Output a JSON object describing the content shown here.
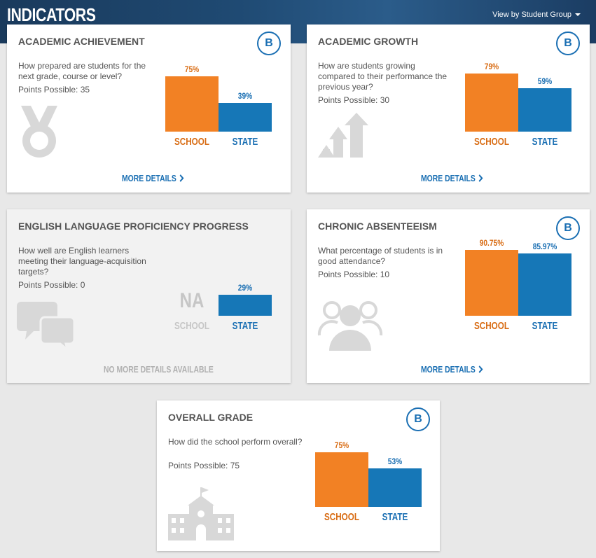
{
  "page": {
    "title": "INDICATORS",
    "view_by_label": "View by Student Group"
  },
  "colors": {
    "school": "#f28124",
    "state": "#1677b7",
    "header": "#1f4a73",
    "grade_badge": "#1a6fb3"
  },
  "cards": {
    "academic_achievement": {
      "title": "ACADEMIC ACHIEVEMENT",
      "description": "How prepared are students for the next grade, course or level?",
      "points": "Points Possible: 35",
      "grade": "B",
      "icon": "medal-icon",
      "school_value": "75%",
      "state_value": "39%",
      "school_label": "SCHOOL",
      "state_label": "STATE",
      "link": "MORE DETAILS"
    },
    "academic_growth": {
      "title": "ACADEMIC GROWTH",
      "description": "How are students growing compared to their performance the previous year?",
      "points": "Points Possible: 30",
      "grade": "B",
      "icon": "growth-arrows-icon",
      "school_value": "79%",
      "state_value": "59%",
      "school_label": "SCHOOL",
      "state_label": "STATE",
      "link": "MORE DETAILS"
    },
    "english_proficiency": {
      "title": "ENGLISH LANGUAGE PROFICIENCY PROGRESS",
      "description": "How well are English learners meeting their language-acquisition targets?",
      "points": "Points Possible: 0",
      "icon": "speech-bubbles-icon",
      "school_value": "NA",
      "state_value": "29%",
      "school_label": "SCHOOL",
      "state_label": "STATE",
      "link": "NO MORE DETAILS AVAILABLE"
    },
    "chronic_absenteeism": {
      "title": "CHRONIC ABSENTEEISM",
      "description": "What percentage of students is in good attendance?",
      "points": "Points Possible: 10",
      "grade": "B",
      "icon": "people-group-icon",
      "school_value": "90.75%",
      "state_value": "85.97%",
      "school_label": "SCHOOL",
      "state_label": "STATE",
      "link": "MORE DETAILS"
    },
    "overall_grade": {
      "title": "OVERALL GRADE",
      "description": "How did the school perform overall?",
      "points": "Points Possible: 75",
      "grade": "B",
      "icon": "school-building-icon",
      "school_value": "75%",
      "state_value": "53%",
      "school_label": "SCHOOL",
      "state_label": "STATE"
    }
  },
  "chart_data": [
    {
      "type": "bar",
      "categories": [
        "SCHOOL",
        "STATE"
      ],
      "values": [
        75,
        39
      ],
      "title": "ACADEMIC ACHIEVEMENT",
      "ylim": [
        0,
        100
      ]
    },
    {
      "type": "bar",
      "categories": [
        "SCHOOL",
        "STATE"
      ],
      "values": [
        79,
        59
      ],
      "title": "ACADEMIC GROWTH",
      "ylim": [
        0,
        100
      ]
    },
    {
      "type": "bar",
      "categories": [
        "SCHOOL",
        "STATE"
      ],
      "values": [
        null,
        29
      ],
      "title": "ENGLISH LANGUAGE PROFICIENCY PROGRESS",
      "ylim": [
        0,
        100
      ]
    },
    {
      "type": "bar",
      "categories": [
        "SCHOOL",
        "STATE"
      ],
      "values": [
        90.75,
        85.97
      ],
      "title": "CHRONIC ABSENTEEISM",
      "ylim": [
        0,
        100
      ]
    },
    {
      "type": "bar",
      "categories": [
        "SCHOOL",
        "STATE"
      ],
      "values": [
        75,
        53
      ],
      "title": "OVERALL GRADE",
      "ylim": [
        0,
        100
      ]
    }
  ]
}
